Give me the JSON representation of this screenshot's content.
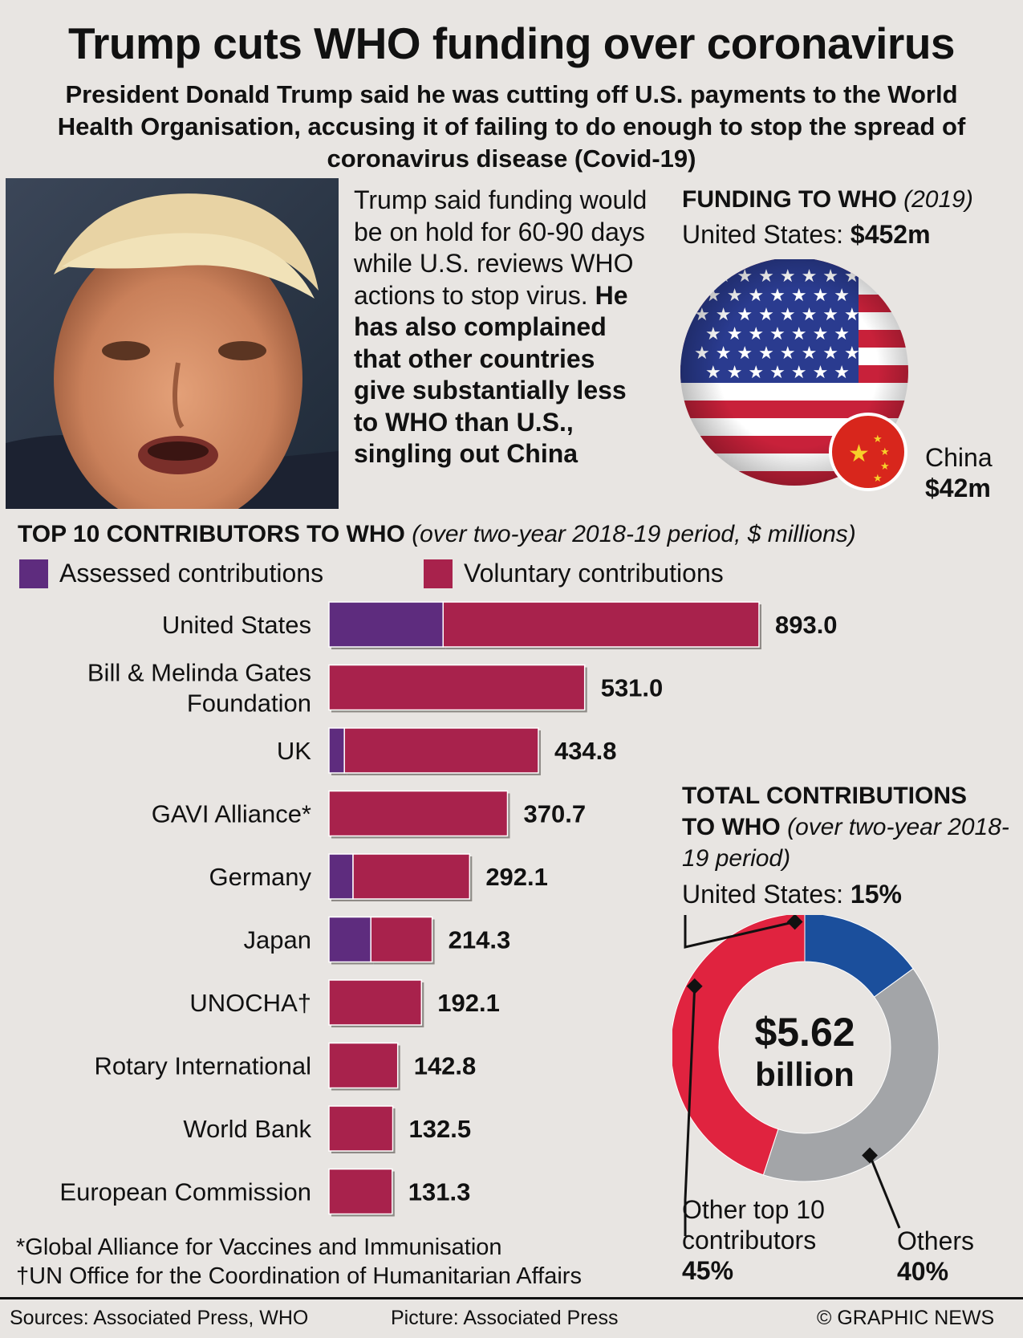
{
  "title": "Trump cuts WHO funding over coronavirus",
  "subtitle": "President Donald Trump said he was cutting off U.S. payments to the World Health Organisation, accusing it of failing to do enough to stop the spread of coronavirus disease (Covid-19)",
  "story": {
    "plain": "Trump said funding would be on hold for 60-90 days while U.S. reviews WHO actions to stop virus.",
    "bold": "He has also complained that other countries give substantially less to WHO than U.S., singling out China"
  },
  "funding": {
    "heading": "FUNDING TO WHO",
    "year": "(2019)",
    "us_label": "United States:",
    "us_value": "$452m",
    "china_label": "China",
    "china_value": "$42m"
  },
  "top10": {
    "heading": "TOP 10 CONTRIBUTORS TO WHO",
    "note": "(over two-year 2018-19 period, $ millions)",
    "legend": [
      {
        "label": "Assessed contributions",
        "color": "#5e2c7e"
      },
      {
        "label": "Voluntary contributions",
        "color": "#a8224c"
      }
    ]
  },
  "donut": {
    "heading_line1": "TOTAL CONTRIBUTIONS",
    "heading_line2": "TO WHO",
    "heading_note": "(over two-year 2018-19 period)",
    "center_value": "$5.62",
    "center_unit": "billion",
    "us_label": "United States:",
    "us_pct": "15%",
    "other_label_1": "Other top 10",
    "other_label_2": "contributors",
    "other_pct": "45%",
    "others_label": "Others",
    "others_pct": "40%",
    "colors": {
      "us": "#1b4f9c",
      "other_top10": "#e0233f",
      "others": "#a3a5a8"
    }
  },
  "chart_data": [
    {
      "type": "bar",
      "orientation": "horizontal",
      "stacked": true,
      "title": "TOP 10 CONTRIBUTORS TO WHO (over two-year 2018-19 period, $ millions)",
      "categories": [
        [
          "United States"
        ],
        [
          "Bill & Melinda Gates",
          "Foundation"
        ],
        [
          "UK"
        ],
        [
          "GAVI Alliance*"
        ],
        [
          "Germany"
        ],
        [
          "Japan"
        ],
        [
          "UNOCHA†"
        ],
        [
          "Rotary International"
        ],
        [
          "World Bank"
        ],
        [
          "European Commission"
        ]
      ],
      "series": [
        {
          "name": "Assessed contributions",
          "color": "#5e2c7e",
          "values": [
            237,
            0,
            32,
            0,
            50,
            87,
            0,
            0,
            0,
            0
          ]
        },
        {
          "name": "Voluntary contributions",
          "color": "#a8224c",
          "values": [
            656,
            531,
            402.8,
            370.7,
            242.1,
            127.3,
            192.1,
            142.8,
            132.5,
            131.3
          ]
        }
      ],
      "totals": [
        "893.0",
        "531.0",
        "434.8",
        "370.7",
        "292.1",
        "214.3",
        "192.1",
        "142.8",
        "132.5",
        "131.3"
      ]
    },
    {
      "type": "pie",
      "title": "TOTAL CONTRIBUTIONS TO WHO (over two-year 2018-19 period)",
      "total": "$5.62 billion",
      "slices": [
        {
          "label": "United States",
          "value": 15
        },
        {
          "label": "Others",
          "value": 40
        },
        {
          "label": "Other top 10 contributors",
          "value": 45
        }
      ]
    }
  ],
  "footnotes": {
    "gavi": "*Global Alliance for Vaccines and Immunisation",
    "unocha": "†UN Office for the Coordination of Humanitarian Affairs"
  },
  "footer": {
    "sources": "Sources: Associated Press, WHO",
    "picture": "Picture: Associated Press",
    "copyright": "© GRAPHIC NEWS"
  }
}
